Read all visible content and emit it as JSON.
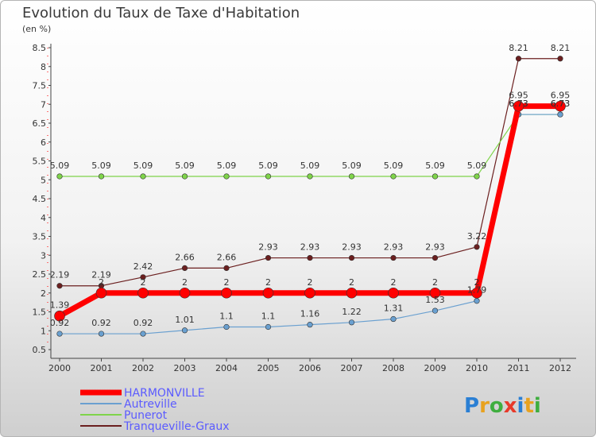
{
  "chart_data": {
    "type": "line",
    "title": "Evolution du Taux de Taxe d'Habitation",
    "unit": "(en %)",
    "x": [
      "2000",
      "2001",
      "2002",
      "2003",
      "2004",
      "2005",
      "2006",
      "2007",
      "2008",
      "2009",
      "2010",
      "2011",
      "2012"
    ],
    "yticks": [
      "0.5",
      "1",
      "1.5",
      "2",
      "2.5",
      "3",
      "3.5",
      "4",
      "4.5",
      "5",
      "5.5",
      "6",
      "6.5",
      "7",
      "7.5",
      "8",
      "8.5"
    ],
    "ylim": [
      0.5,
      8.5
    ],
    "grid": false,
    "legend_position": "bottom-left",
    "series": [
      {
        "name": "Tranqueville-Graux",
        "color": "#6b1f1f",
        "width": 1.2,
        "values": [
          2.19,
          2.19,
          2.42,
          2.66,
          2.66,
          2.93,
          2.93,
          2.93,
          2.93,
          2.93,
          3.22,
          8.21,
          8.21
        ],
        "labels": [
          "2.19",
          "2.19",
          "2.42",
          "2.66",
          "2.66",
          "2.93",
          "2.93",
          "2.93",
          "2.93",
          "2.93",
          "3.22",
          "8.21",
          "8.21"
        ]
      },
      {
        "name": "Punerot",
        "color": "#7fd44a",
        "width": 1.2,
        "values": [
          5.09,
          5.09,
          5.09,
          5.09,
          5.09,
          5.09,
          5.09,
          5.09,
          5.09,
          5.09,
          5.09,
          6.73,
          6.73
        ],
        "labels": [
          "5.09",
          "5.09",
          "5.09",
          "5.09",
          "5.09",
          "5.09",
          "5.09",
          "5.09",
          "5.09",
          "5.09",
          "5.09",
          "6.73",
          "6.73"
        ]
      },
      {
        "name": "Autreville",
        "color": "#6aa0d0",
        "width": 1.2,
        "values": [
          0.92,
          0.92,
          0.92,
          1.01,
          1.1,
          1.1,
          1.16,
          1.22,
          1.31,
          1.53,
          1.79,
          6.73,
          6.73
        ],
        "labels": [
          "0.92",
          "0.92",
          "0.92",
          "1.01",
          "1.1",
          "1.1",
          "1.16",
          "1.22",
          "1.31",
          "1.53",
          "1.79",
          "6.73",
          "6.73"
        ]
      },
      {
        "name": "HARMONVILLE",
        "color": "#ff0000",
        "width": 7,
        "values": [
          1.39,
          2,
          2,
          2,
          2,
          2,
          2,
          2,
          2,
          2,
          2,
          6.95,
          6.95
        ],
        "labels": [
          "1.39",
          "2",
          "2",
          "2",
          "2",
          "2",
          "2",
          "2",
          "2",
          "2",
          "2",
          "6.95",
          "6.95"
        ]
      }
    ]
  },
  "legend": [
    {
      "name": "HARMONVILLE",
      "color": "#ff0000",
      "text_color": "#5b5bff"
    },
    {
      "name": "Autreville",
      "color": "#6aa0d0",
      "text_color": "#5b5bff"
    },
    {
      "name": "Punerot",
      "color": "#7fd44a",
      "text_color": "#5b5bff"
    },
    {
      "name": "Tranqueville-Graux",
      "color": "#6b1f1f",
      "text_color": "#5b5bff"
    }
  ],
  "brand": {
    "letters": [
      "P",
      "r",
      "o",
      "x",
      "i",
      "t",
      "i"
    ],
    "colors": [
      "#2a7fd4",
      "#e8a21f",
      "#3fae3f",
      "#e83a2a",
      "#2a7fd4",
      "#e8a21f",
      "#3fae3f"
    ]
  }
}
